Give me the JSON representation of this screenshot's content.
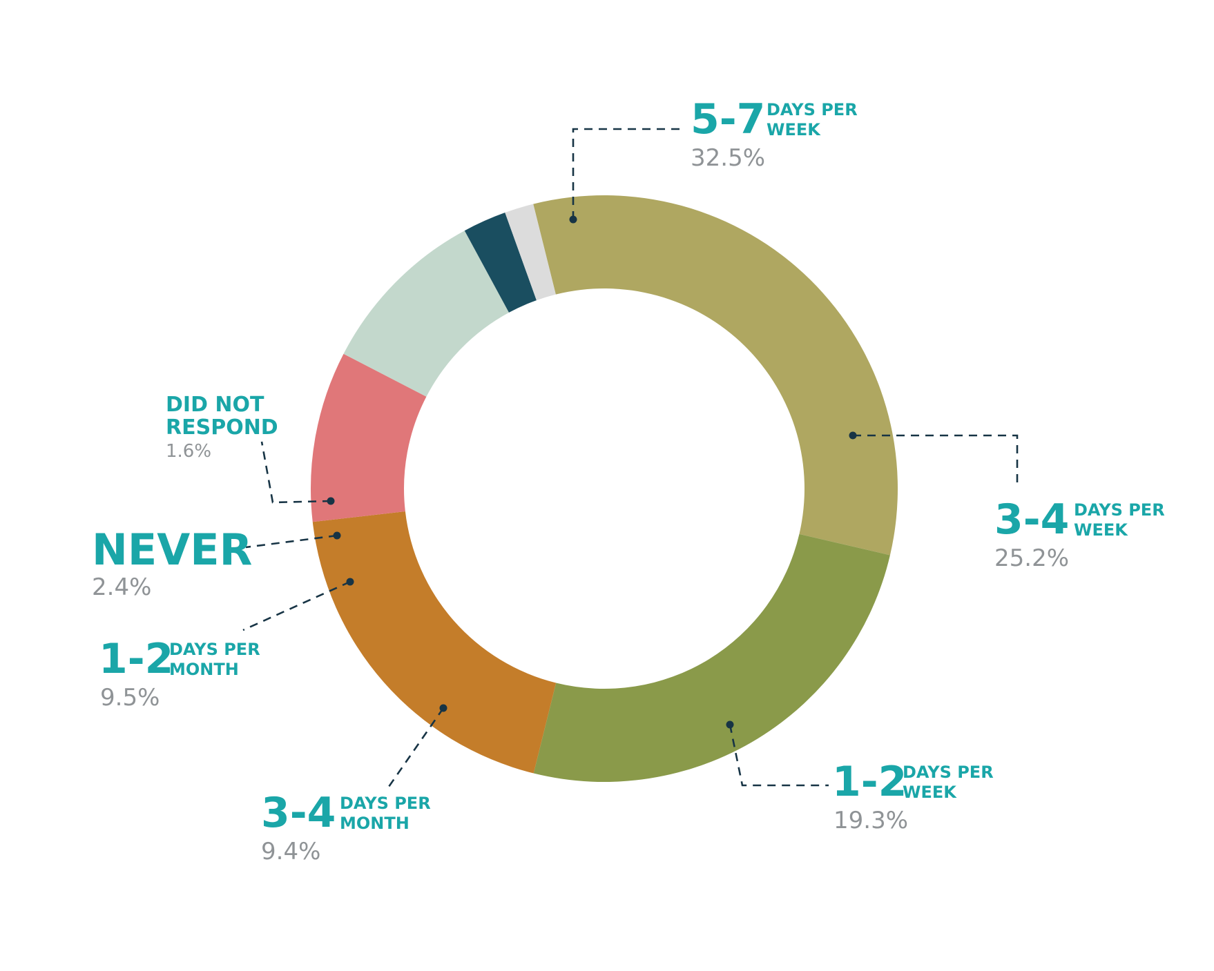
{
  "chart_data": {
    "type": "pie",
    "variant": "donut",
    "slices": [
      {
        "key": "57w",
        "big": "5-7",
        "small": [
          "DAYS PER",
          "WEEK"
        ],
        "value": 32.5,
        "pct_label": "32.5%",
        "color": "#afa761"
      },
      {
        "key": "34w",
        "big": "3-4",
        "small": [
          "DAYS PER",
          "WEEK"
        ],
        "value": 25.2,
        "pct_label": "25.2%",
        "color": "#8a9a4a"
      },
      {
        "key": "12w",
        "big": "1-2",
        "small": [
          "DAYS PER",
          "WEEK"
        ],
        "value": 19.3,
        "pct_label": "19.3%",
        "color": "#c47d2a"
      },
      {
        "key": "34m",
        "big": "3-4",
        "small": [
          "DAYS PER",
          "MONTH"
        ],
        "value": 9.4,
        "pct_label": "9.4%",
        "color": "#e07779"
      },
      {
        "key": "12m",
        "big": "1-2",
        "small": [
          "DAYS PER",
          "MONTH"
        ],
        "value": 9.5,
        "pct_label": "9.5%",
        "color": "#c3d8cc"
      },
      {
        "key": "never",
        "big": "NEVER",
        "small": [],
        "value": 2.4,
        "pct_label": "2.4%",
        "color": "#1a4e60"
      },
      {
        "key": "dnr",
        "big": "",
        "small": [
          "DID NOT",
          "RESPOND"
        ],
        "value": 1.6,
        "pct_label": "1.6%",
        "color": "#dcdcdc"
      }
    ],
    "label_color": "#1aa6a8",
    "percent_color": "#8f9396",
    "leader_color": "#173445"
  }
}
